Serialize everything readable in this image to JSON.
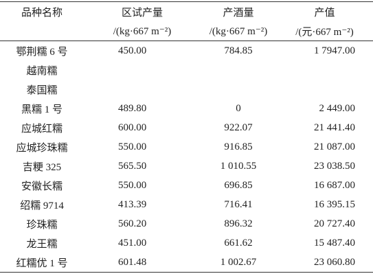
{
  "table": {
    "header": [
      {
        "title": "品种名称",
        "unit": null
      },
      {
        "title": "区试产量",
        "unit": "/(kg·667 m⁻²)"
      },
      {
        "title": "产酒量",
        "unit": "/(kg·667 m⁻²)"
      },
      {
        "title": "产值",
        "unit": "/(元·667 m⁻²)"
      }
    ],
    "rows": [
      [
        "鄂荆糯 6 号",
        "450.00",
        "784.85",
        "1 7947.00"
      ],
      [
        "越南糯",
        null,
        null,
        null
      ],
      [
        "泰国糯",
        null,
        null,
        null
      ],
      [
        "黑糯 1 号",
        "489.80",
        "0",
        "2 449.00"
      ],
      [
        "应城红糯",
        "600.00",
        "922.07",
        "21 441.40"
      ],
      [
        "应城珍珠糯",
        "550.00",
        "916.85",
        "21 087.00"
      ],
      [
        "吉粳 325",
        "565.50",
        "1 010.55",
        "23 038.50"
      ],
      [
        "安徽长糯",
        "550.00",
        "696.85",
        "16 687.00"
      ],
      [
        "绍糯 9714",
        "413.39",
        "716.41",
        "16 395.15"
      ],
      [
        "珍珠糯",
        "560.20",
        "896.32",
        "20 727.40"
      ],
      [
        "龙王糯",
        "451.00",
        "661.62",
        "15 487.40"
      ],
      [
        "红糯优 1 号",
        "601.48",
        "1 002.67",
        "23 060.80"
      ]
    ]
  }
}
